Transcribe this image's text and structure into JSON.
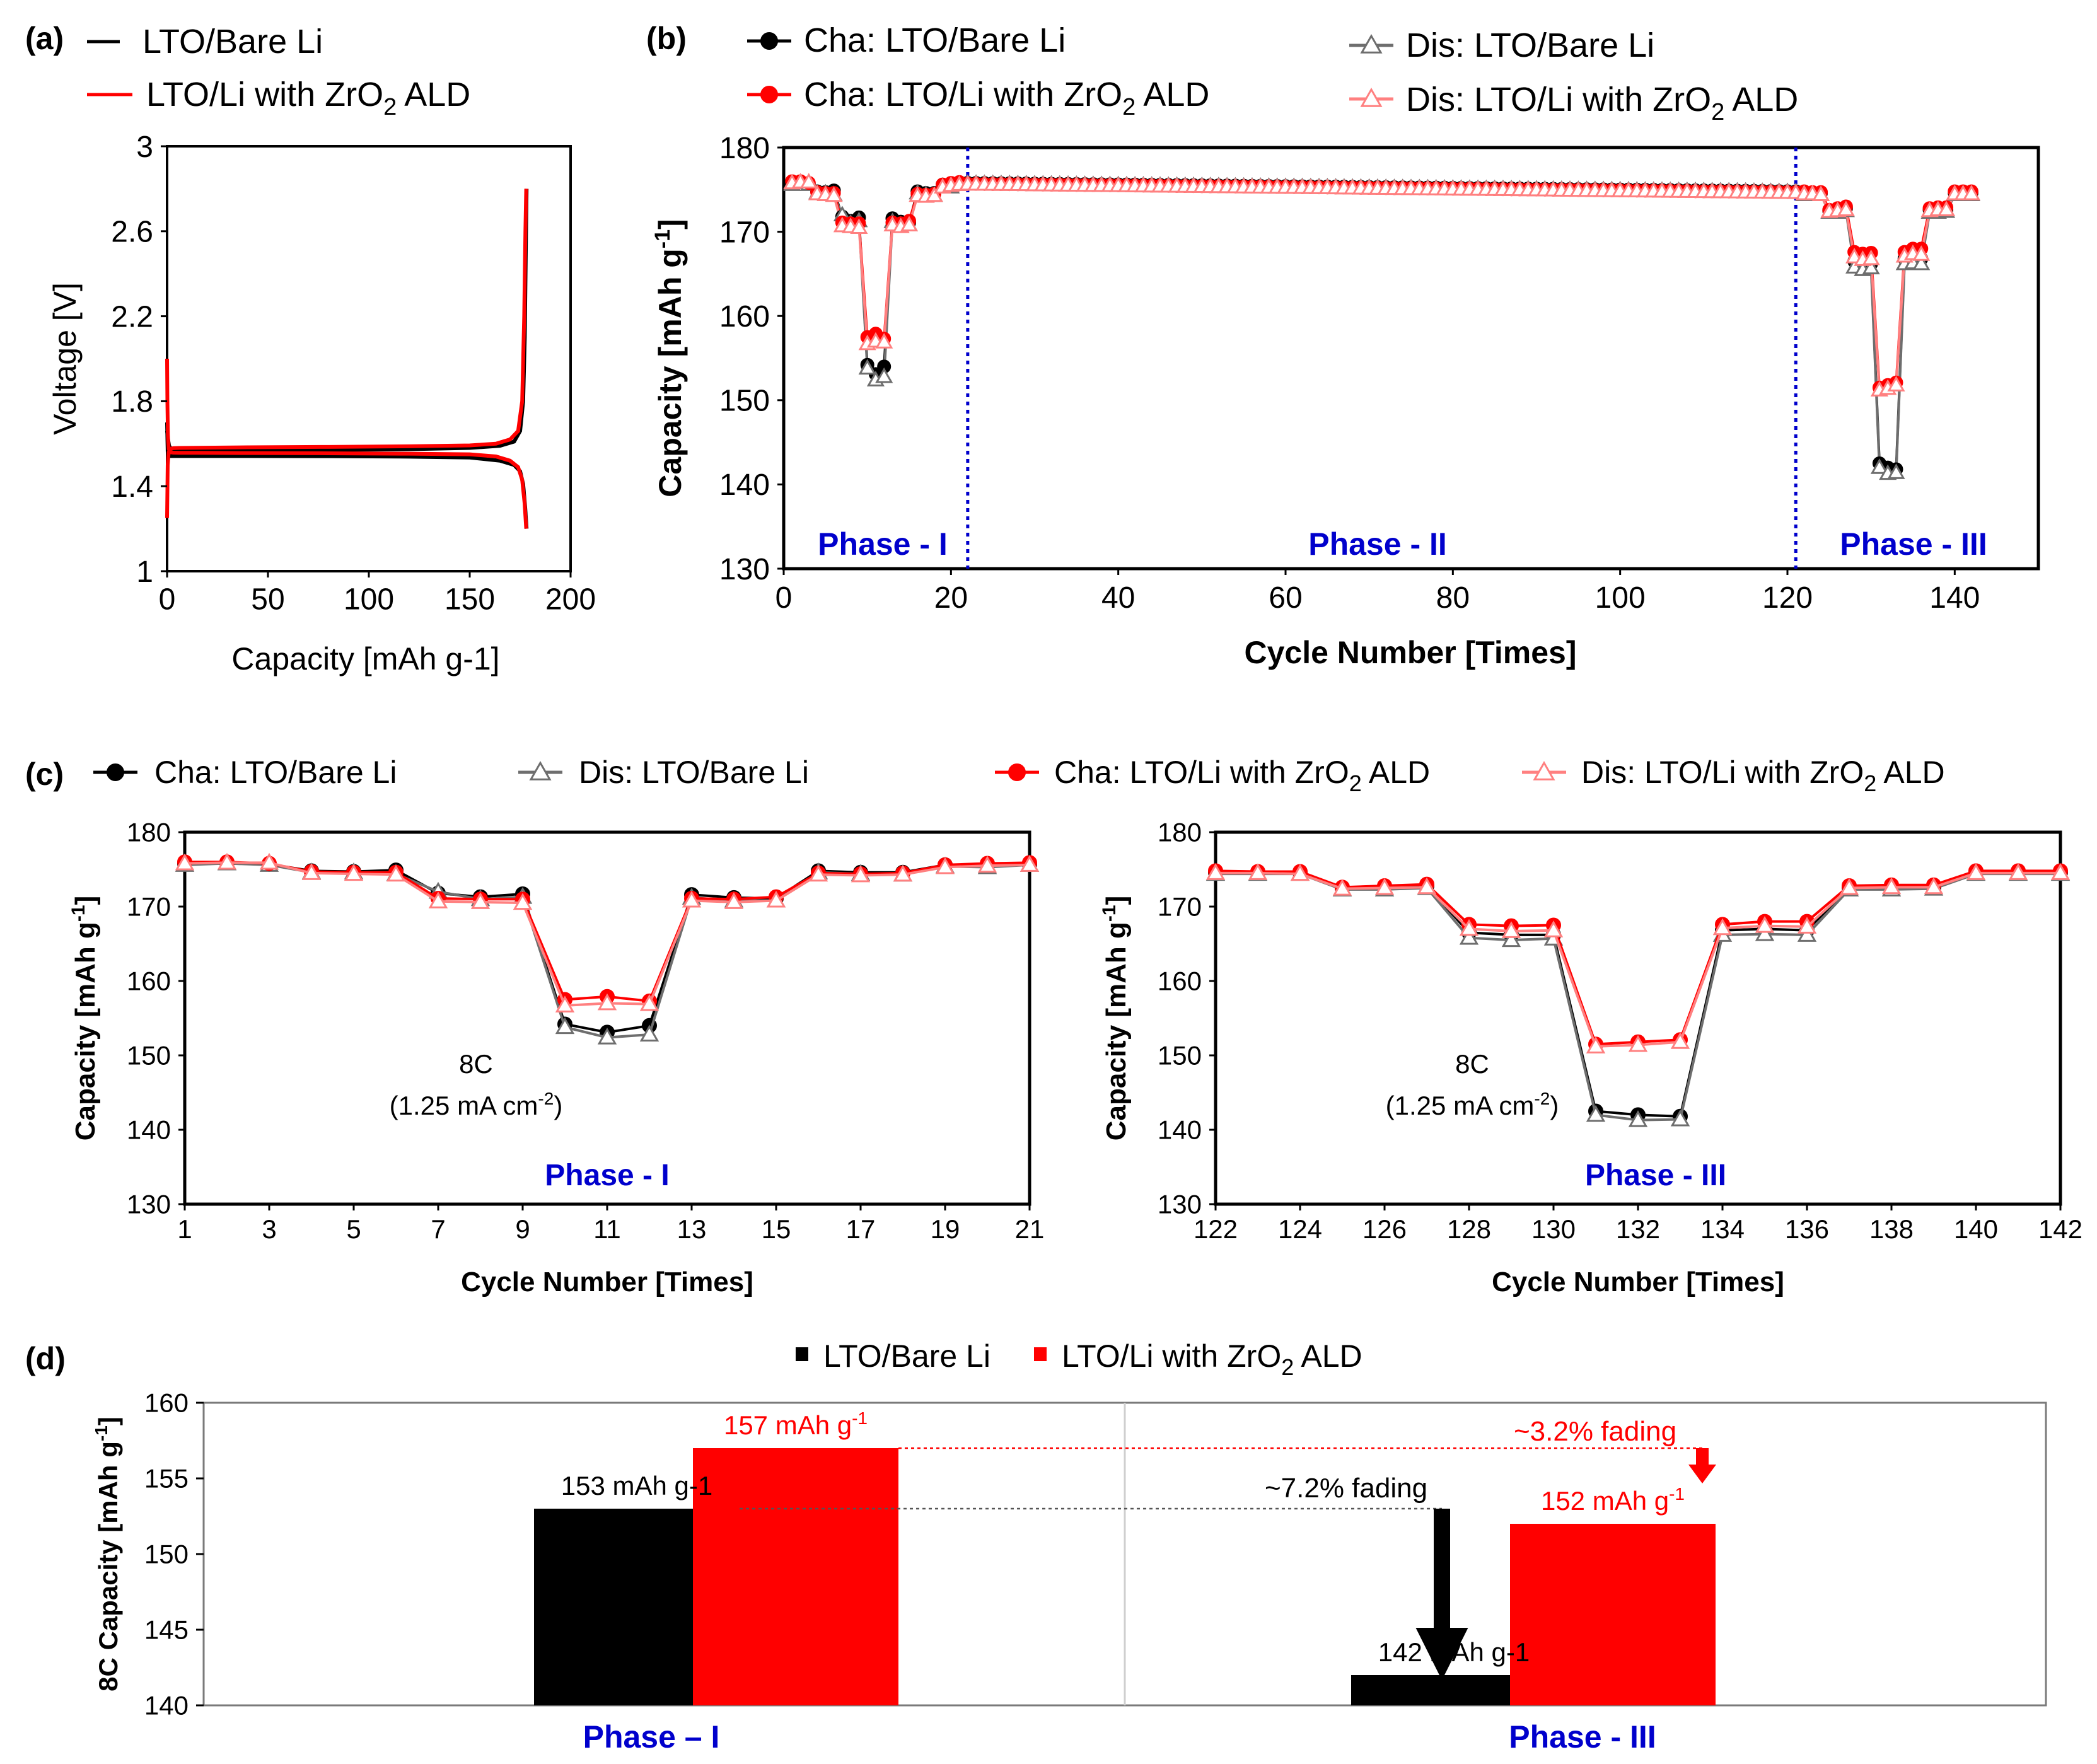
{
  "colors": {
    "black": "#000000",
    "red": "#ff0000",
    "grey": "#6e6e6e",
    "pink": "#ff8080",
    "blue": "#0000cc",
    "fade_red": "#ff0000",
    "neutral": "#333333"
  },
  "chart_data": [
    {
      "panel": "(a)",
      "type": "line",
      "xlabel": "Capacity [mAh g-1]",
      "ylabel": "Voltage [V]",
      "xlim": [
        0,
        200
      ],
      "ylim": [
        1,
        3
      ],
      "x_ticks": [
        "0",
        "50",
        "100",
        "150",
        "200"
      ],
      "y_ticks": [
        "1",
        "1.4",
        "1.8",
        "2.2",
        "2.6",
        "3"
      ],
      "legend": [
        {
          "label": "LTO/Bare Li",
          "color": "#000000"
        },
        {
          "label": "LTO/Li with ZrO",
          "sub": "2",
          "tail": " ALD",
          "color": "#ff0000"
        }
      ],
      "series": [
        {
          "name": "LTO/Bare Li",
          "curves": [
            {
              "x": [
                0,
                0.5,
                1,
                2,
                3,
                5,
                8,
                15,
                40,
                80,
                120,
                150,
                165,
                172,
                175,
                176.5,
                177.3,
                177.8,
                178.2
              ],
              "y": [
                1.66,
                1.62,
                1.59,
                1.575,
                1.57,
                1.566,
                1.565,
                1.566,
                1.567,
                1.57,
                1.574,
                1.58,
                1.59,
                1.61,
                1.66,
                1.8,
                2.1,
                2.5,
                2.8
              ]
            },
            {
              "x": [
                0,
                0.3,
                0.8,
                1.5,
                3,
                6,
                15,
                40,
                80,
                120,
                150,
                165,
                172,
                175,
                176.5,
                177.5,
                178.2
              ],
              "y": [
                1.7,
                1.56,
                1.545,
                1.542,
                1.542,
                1.542,
                1.542,
                1.542,
                1.541,
                1.539,
                1.535,
                1.52,
                1.5,
                1.47,
                1.41,
                1.3,
                1.2
              ]
            }
          ]
        },
        {
          "name": "LTO/Li with ZrO2 ALD",
          "curves": [
            {
              "x": [
                0,
                0.3,
                0.8,
                1.5,
                3,
                6,
                15,
                40,
                80,
                120,
                150,
                163,
                170,
                174,
                176,
                177,
                177.6,
                178
              ],
              "y": [
                1.25,
                1.5,
                1.56,
                1.575,
                1.579,
                1.58,
                1.581,
                1.583,
                1.585,
                1.588,
                1.592,
                1.6,
                1.62,
                1.66,
                1.8,
                2.2,
                2.6,
                2.8
              ]
            },
            {
              "x": [
                0,
                0.15,
                0.4,
                0.8,
                1.5,
                3,
                6,
                15,
                40,
                80,
                120,
                150,
                163,
                170,
                174,
                176,
                177.2,
                178
              ],
              "y": [
                2.0,
                1.8,
                1.64,
                1.575,
                1.56,
                1.558,
                1.557,
                1.557,
                1.556,
                1.555,
                1.553,
                1.55,
                1.54,
                1.52,
                1.49,
                1.43,
                1.32,
                1.2
              ]
            }
          ]
        }
      ]
    },
    {
      "panel": "(b)",
      "type": "line",
      "xlabel": "Cycle Number [Times]",
      "ylabel": "Capacity [mAh g",
      "ylabel_sup": "-1",
      "ylabel_tail": "]",
      "xlim": [
        0,
        150
      ],
      "ylim": [
        130,
        180
      ],
      "x_ticks": [
        "0",
        "20",
        "40",
        "60",
        "80",
        "100",
        "120",
        "140"
      ],
      "y_ticks": [
        "130",
        "140",
        "150",
        "160",
        "170",
        "180"
      ],
      "phase_dividers": [
        22,
        121
      ],
      "phases": [
        "Phase - I",
        "Phase - II",
        "Phase - III"
      ],
      "legend": [
        {
          "label": "Cha: LTO/Bare Li"
        },
        {
          "label": "Dis: LTO/Bare Li"
        },
        {
          "label": "Cha: LTO/Li with ZrO",
          "sub": "2",
          "tail": " ALD"
        },
        {
          "label": "Dis: LTO/Li with ZrO",
          "sub": "2",
          "tail": " ALD"
        }
      ],
      "phase2_values": {
        "start": 175.8,
        "end": 174.8
      }
    },
    {
      "panel": "(c)",
      "type": "line",
      "legend": [
        {
          "label": "Cha: LTO/Bare Li"
        },
        {
          "label": "Dis: LTO/Bare Li"
        },
        {
          "label": "Cha: LTO/Li with ZrO",
          "sub": "2",
          "tail": " ALD"
        },
        {
          "label": "Dis: LTO/Li with ZrO",
          "sub": "2",
          "tail": " ALD"
        }
      ],
      "sub_charts": [
        {
          "name": "Phase - I",
          "xlabel": "Cycle Number [Times]",
          "ylabel": "Capacity [mAh g",
          "ylabel_sup": "-1",
          "ylabel_tail": "]",
          "xlim": [
            1,
            21
          ],
          "ylim": [
            130,
            180
          ],
          "x_ticks": [
            "1",
            "3",
            "5",
            "7",
            "9",
            "11",
            "13",
            "15",
            "17",
            "19",
            "21"
          ],
          "y_ticks": [
            "130",
            "140",
            "150",
            "160",
            "170",
            "180"
          ],
          "annotation_line1": "8C",
          "annotation_line2": "(1.25 mA cm",
          "annotation_sup": "-2",
          "annotation_tail": ")",
          "x": [
            1,
            2,
            3,
            4,
            5,
            6,
            7,
            8,
            9,
            10,
            11,
            12,
            13,
            14,
            15,
            16,
            17,
            18,
            19,
            20,
            21
          ],
          "series": [
            {
              "name": "Cha: LTO/Bare Li",
              "values": [
                175.8,
                175.9,
                175.7,
                174.8,
                174.7,
                174.9,
                171.8,
                171.3,
                171.7,
                154.2,
                153.1,
                154.0,
                171.6,
                171.2,
                171.1,
                174.8,
                174.6,
                174.6,
                175.6,
                175.6,
                175.7
              ]
            },
            {
              "name": "Dis: LTO/Bare Li",
              "values": [
                175.6,
                175.8,
                175.6,
                174.6,
                174.6,
                174.4,
                172.0,
                171.0,
                171.3,
                153.8,
                152.4,
                152.8,
                171.2,
                170.8,
                170.8,
                174.6,
                174.4,
                174.3,
                175.4,
                175.3,
                175.6
              ]
            },
            {
              "name": "Cha: LTO/Li with ZrO2 ALD",
              "values": [
                176.0,
                176.0,
                175.8,
                174.7,
                174.6,
                174.6,
                171.1,
                171.0,
                171.0,
                157.5,
                157.9,
                157.3,
                171.1,
                171.0,
                171.3,
                174.5,
                174.4,
                174.5,
                175.6,
                175.8,
                175.9
              ]
            },
            {
              "name": "Dis: LTO/Li with ZrO2 ALD",
              "values": [
                175.8,
                175.9,
                175.9,
                174.5,
                174.4,
                174.3,
                170.7,
                170.6,
                170.5,
                156.7,
                157.0,
                156.9,
                170.8,
                170.6,
                170.8,
                174.3,
                174.2,
                174.3,
                175.3,
                175.5,
                175.6
              ]
            }
          ]
        },
        {
          "name": "Phase - III",
          "xlabel": "Cycle Number [Times]",
          "ylabel": "Capacity [mAh g",
          "ylabel_sup": "-1",
          "ylabel_tail": "]",
          "xlim": [
            122,
            142
          ],
          "ylim": [
            130,
            180
          ],
          "x_ticks": [
            "122",
            "124",
            "126",
            "128",
            "130",
            "132",
            "134",
            "136",
            "138",
            "140",
            "142"
          ],
          "y_ticks": [
            "130",
            "140",
            "150",
            "160",
            "170",
            "180"
          ],
          "annotation_line1": "8C",
          "annotation_line2": "(1.25 mA cm",
          "annotation_sup": "-2",
          "annotation_tail": ")",
          "x": [
            122,
            123,
            124,
            125,
            126,
            127,
            128,
            129,
            130,
            131,
            132,
            133,
            134,
            135,
            136,
            137,
            138,
            139,
            140,
            141,
            142
          ],
          "series": [
            {
              "name": "Cha: LTO/Bare Li",
              "values": [
                174.6,
                174.6,
                174.6,
                172.5,
                172.6,
                172.8,
                166.5,
                166.2,
                166.2,
                142.5,
                142.0,
                141.8,
                166.8,
                167.0,
                166.8,
                172.6,
                172.6,
                172.6,
                174.6,
                174.6,
                174.6
              ]
            },
            {
              "name": "Dis: LTO/Bare Li",
              "values": [
                174.4,
                174.4,
                174.4,
                172.3,
                172.3,
                172.5,
                165.8,
                165.5,
                165.7,
                142.0,
                141.3,
                141.4,
                166.2,
                166.3,
                166.2,
                172.3,
                172.3,
                172.4,
                174.4,
                174.4,
                174.4
              ]
            },
            {
              "name": "Cha: LTO/Li with ZrO2 ALD",
              "values": [
                174.8,
                174.7,
                174.7,
                172.6,
                172.8,
                173.0,
                167.6,
                167.4,
                167.5,
                151.5,
                151.8,
                152.1,
                167.6,
                168.0,
                168.0,
                172.8,
                172.9,
                172.9,
                174.8,
                174.8,
                174.8
              ]
            },
            {
              "name": "Dis: LTO/Li with ZrO2 ALD",
              "values": [
                174.5,
                174.5,
                174.4,
                172.4,
                172.5,
                172.6,
                167.0,
                166.7,
                166.8,
                151.2,
                151.4,
                151.8,
                167.1,
                167.4,
                167.3,
                172.5,
                172.6,
                172.6,
                174.5,
                174.5,
                174.5
              ]
            }
          ]
        }
      ]
    },
    {
      "panel": "(d)",
      "type": "bar",
      "ylabel": "8C Capacity [mAh g",
      "ylabel_sup": "-1",
      "ylabel_tail": "]",
      "ylim": [
        140,
        160
      ],
      "y_ticks": [
        "140",
        "145",
        "150",
        "155",
        "160"
      ],
      "categories": [
        "Phase – I",
        "Phase - III"
      ],
      "legend": [
        {
          "label": "LTO/Bare Li",
          "color": "#000000"
        },
        {
          "label": "LTO/Li with ZrO",
          "sub": "2",
          "tail": " ALD",
          "color": "#ff0000"
        }
      ],
      "series": [
        {
          "name": "LTO/Bare Li",
          "values": [
            153,
            142
          ]
        },
        {
          "name": "LTO/Li with ZrO2 ALD",
          "values": [
            157,
            152
          ]
        }
      ],
      "bar_labels": [
        {
          "text": "153 mAh g-1"
        },
        {
          "text": "157 mAh g",
          "sup": "-1"
        },
        {
          "text": "142 mAh g-1"
        },
        {
          "text": "152 mAh g",
          "sup": "-1"
        }
      ],
      "fading_labels": [
        "~7.2% fading",
        "~3.2% fading"
      ]
    }
  ]
}
